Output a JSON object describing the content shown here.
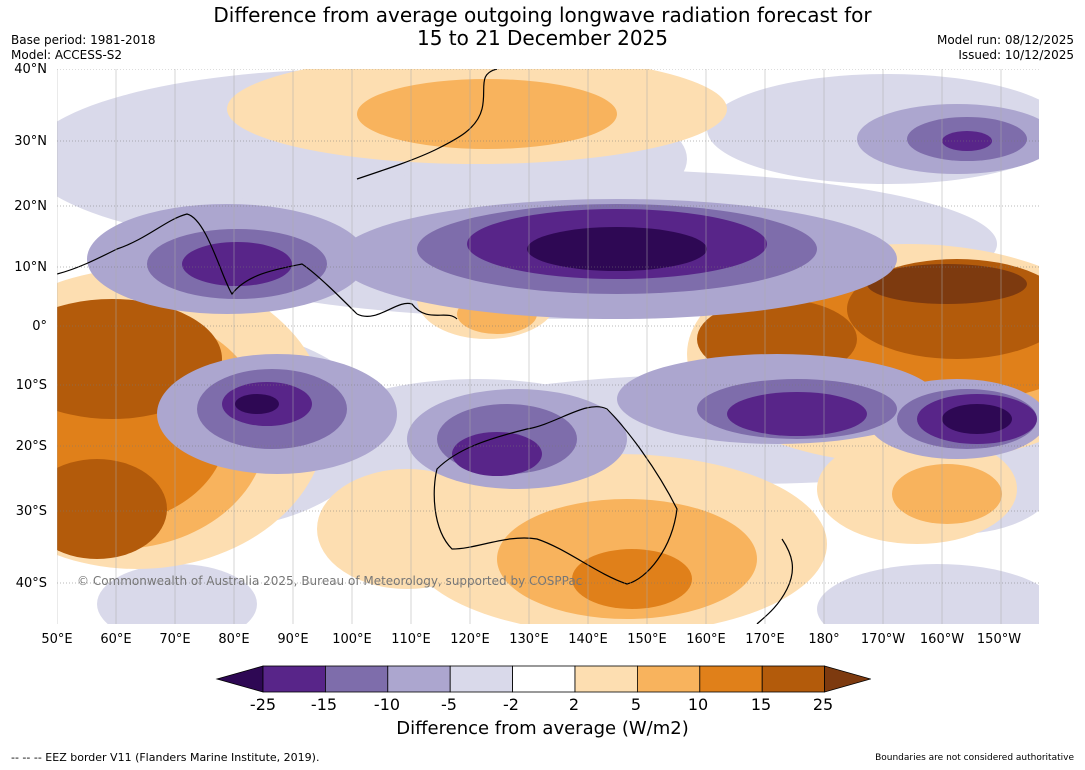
{
  "title": {
    "line1": "Difference from average outgoing longwave radiation forecast for",
    "line2": "15 to 21 December 2025"
  },
  "meta_left": {
    "base_period": "Base period: 1981-2018",
    "model": "Model: ACCESS-S2"
  },
  "meta_right": {
    "model_run": "Model run: 08/12/2025",
    "issued": "Issued: 10/12/2025"
  },
  "map": {
    "copyright": "© Commonwealth of Australia 2025, Bureau of Meteorology, supported by COSPPac",
    "lat_labels": [
      "40°N",
      "30°N",
      "20°N",
      "10°N",
      "0°",
      "10°S",
      "20°S",
      "30°S",
      "40°S"
    ],
    "lon_labels": [
      "50°E",
      "60°E",
      "70°E",
      "80°E",
      "90°E",
      "100°E",
      "110°E",
      "120°E",
      "130°E",
      "140°E",
      "150°E",
      "160°E",
      "170°E",
      "180°",
      "170°W",
      "160°W",
      "150°W"
    ]
  },
  "colorbar": {
    "ticks": [
      "-25",
      "-15",
      "-10",
      "-5",
      "-2",
      "2",
      "5",
      "10",
      "15",
      "25"
    ],
    "colors": [
      "#2e0854",
      "#582589",
      "#7e6dab",
      "#aca6cf",
      "#d9d9ea",
      "#ffffff",
      "#fddeb1",
      "#f8b35d",
      "#e0801a",
      "#b35b0b",
      "#7d3a0f"
    ],
    "label": "Difference from average (W/m2)"
  },
  "footer": {
    "eez_note": "--  --  -- EEZ border V11 (Flanders Marine Institute, 2019).",
    "boundaries_note": "Boundaries are not considered authoritative"
  }
}
